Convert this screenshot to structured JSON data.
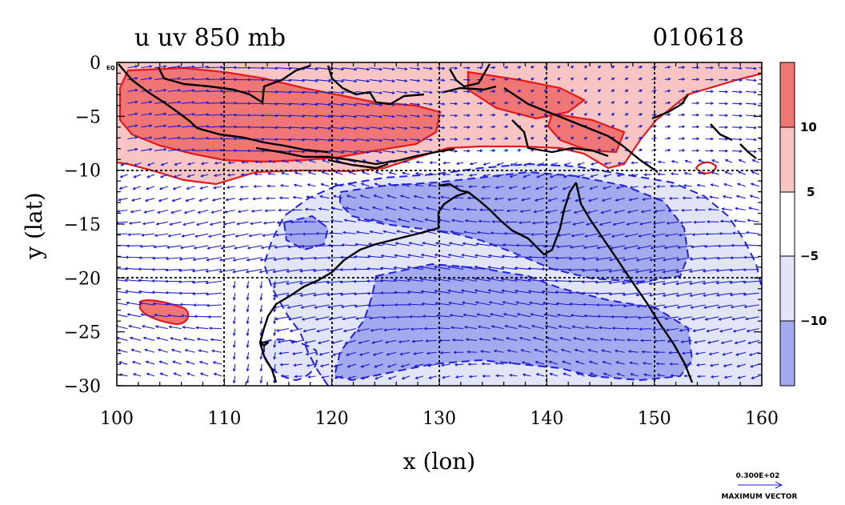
{
  "chart_data": {
    "type": "heatmap",
    "title_left": "u uv 850 mb",
    "title_right": "010618",
    "xlabel": "x (lon)",
    "ylabel": "y (lat)",
    "xlim": [
      100,
      160
    ],
    "ylim": [
      -30,
      0
    ],
    "x_ticks": [
      100,
      110,
      120,
      130,
      140,
      150,
      160
    ],
    "y_ticks": [
      0,
      -5,
      -10,
      -15,
      -20,
      -25,
      -30
    ],
    "y_tick_labels": [
      "0",
      "−5",
      "−10",
      "−15",
      "−20",
      "−25",
      "−30"
    ],
    "equator_marker": "EQ",
    "grid": true,
    "colorbar": {
      "labels": [
        "10",
        "5",
        "−5",
        "−10"
      ],
      "colors": [
        "#f07575",
        "#f8c4c4",
        "#ffffff",
        "#e2e4f8",
        "#a4aaee"
      ]
    },
    "vector_reference": {
      "value": "0.300E+02",
      "label": "MAXIMUM VECTOR"
    },
    "fields": {
      "strong_westerly_color": "#f07575",
      "westerly_color": "#f8c4c4",
      "easterly_color": "#e2e4f8",
      "strong_easterly_color": "#a4aaee",
      "arrow_color": "#1e1ecc",
      "coast_color": "#000000"
    }
  }
}
